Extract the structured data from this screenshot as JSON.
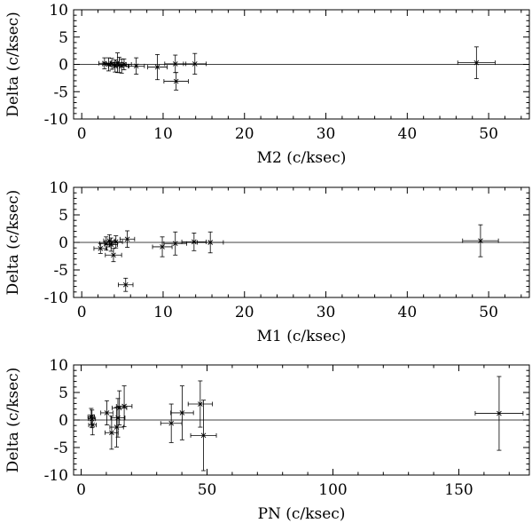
{
  "chart_data": [
    {
      "type": "scatter",
      "xlabel": "M2 (c/ksec)",
      "ylabel": "Delta (c/ksec)",
      "xlim": [
        -1,
        55
      ],
      "ylim": [
        -10,
        10
      ],
      "xticks": [
        0,
        10,
        20,
        30,
        40,
        50
      ],
      "yticks": [
        -10,
        -5,
        0,
        5,
        10
      ],
      "reference_line_y": 0,
      "points": [
        {
          "x": 2.8,
          "y": 0.2,
          "xerr": 0.7,
          "yerr": 1.0
        },
        {
          "x": 3.3,
          "y": 0.0,
          "xerr": 0.7,
          "yerr": 1.2
        },
        {
          "x": 3.7,
          "y": 0.1,
          "xerr": 0.8,
          "yerr": 1.0
        },
        {
          "x": 4.1,
          "y": -0.3,
          "xerr": 0.8,
          "yerr": 1.1
        },
        {
          "x": 4.4,
          "y": 0.3,
          "xerr": 0.8,
          "yerr": 1.8
        },
        {
          "x": 4.6,
          "y": -0.1,
          "xerr": 0.9,
          "yerr": 1.4
        },
        {
          "x": 4.9,
          "y": -0.3,
          "xerr": 0.9,
          "yerr": 1.3
        },
        {
          "x": 5.2,
          "y": 0.0,
          "xerr": 0.9,
          "yerr": 1.0
        },
        {
          "x": 6.7,
          "y": -0.3,
          "xerr": 1.0,
          "yerr": 1.5
        },
        {
          "x": 9.3,
          "y": -0.5,
          "xerr": 1.2,
          "yerr": 2.3
        },
        {
          "x": 11.5,
          "y": 0.1,
          "xerr": 1.3,
          "yerr": 1.6
        },
        {
          "x": 11.6,
          "y": -3.1,
          "xerr": 1.5,
          "yerr": 1.6
        },
        {
          "x": 13.9,
          "y": 0.1,
          "xerr": 1.4,
          "yerr": 1.9
        },
        {
          "x": 48.5,
          "y": 0.3,
          "xerr": 2.3,
          "yerr": 2.9
        }
      ]
    },
    {
      "type": "scatter",
      "xlabel": "M1 (c/ksec)",
      "ylabel": "Delta (c/ksec)",
      "xlim": [
        -1,
        55
      ],
      "ylim": [
        -10,
        10
      ],
      "xticks": [
        0,
        10,
        20,
        30,
        40,
        50
      ],
      "yticks": [
        -10,
        -5,
        0,
        5,
        10
      ],
      "reference_line_y": 0,
      "points": [
        {
          "x": 2.3,
          "y": -1.1,
          "xerr": 0.8,
          "yerr": 0.9
        },
        {
          "x": 3.0,
          "y": -0.2,
          "xerr": 0.8,
          "yerr": 1.2
        },
        {
          "x": 3.4,
          "y": 0.3,
          "xerr": 0.7,
          "yerr": 1.1
        },
        {
          "x": 3.6,
          "y": -0.4,
          "xerr": 0.8,
          "yerr": 1.2
        },
        {
          "x": 3.9,
          "y": -2.3,
          "xerr": 1.0,
          "yerr": 1.2
        },
        {
          "x": 4.2,
          "y": 0.1,
          "xerr": 0.8,
          "yerr": 1.1
        },
        {
          "x": 5.4,
          "y": -7.7,
          "xerr": 0.9,
          "yerr": 1.2
        },
        {
          "x": 5.6,
          "y": 0.6,
          "xerr": 0.9,
          "yerr": 1.5
        },
        {
          "x": 9.9,
          "y": -0.8,
          "xerr": 1.2,
          "yerr": 1.8
        },
        {
          "x": 11.5,
          "y": -0.2,
          "xerr": 1.4,
          "yerr": 2.1
        },
        {
          "x": 13.8,
          "y": 0.1,
          "xerr": 1.5,
          "yerr": 1.6
        },
        {
          "x": 15.8,
          "y": 0.0,
          "xerr": 1.6,
          "yerr": 1.9
        },
        {
          "x": 49.0,
          "y": 0.3,
          "xerr": 2.2,
          "yerr": 2.9
        }
      ]
    },
    {
      "type": "scatter",
      "xlabel": "PN (c/ksec)",
      "ylabel": "Delta (c/ksec)",
      "xlim": [
        -3,
        178
      ],
      "ylim": [
        -10,
        10
      ],
      "xticks": [
        0,
        50,
        100,
        150
      ],
      "yticks": [
        -10,
        -5,
        0,
        5,
        10
      ],
      "reference_line_y": 0,
      "points": [
        {
          "x": 4.0,
          "y": 0.6,
          "xerr": 1.3,
          "yerr": 1.5
        },
        {
          "x": 4.3,
          "y": 0.2,
          "xerr": 1.4,
          "yerr": 1.6
        },
        {
          "x": 4.5,
          "y": -0.9,
          "xerr": 1.5,
          "yerr": 1.8
        },
        {
          "x": 10.2,
          "y": 1.3,
          "xerr": 2.4,
          "yerr": 2.2
        },
        {
          "x": 12.1,
          "y": -2.3,
          "xerr": 2.6,
          "yerr": 3.0
        },
        {
          "x": 14.1,
          "y": -1.3,
          "xerr": 2.7,
          "yerr": 3.6
        },
        {
          "x": 14.6,
          "y": 0.4,
          "xerr": 2.8,
          "yerr": 3.5
        },
        {
          "x": 15.2,
          "y": 2.2,
          "xerr": 2.9,
          "yerr": 3.1
        },
        {
          "x": 17.1,
          "y": 2.5,
          "xerr": 3.1,
          "yerr": 3.7
        },
        {
          "x": 35.8,
          "y": -0.6,
          "xerr": 4.2,
          "yerr": 3.5
        },
        {
          "x": 40.1,
          "y": 1.3,
          "xerr": 4.5,
          "yerr": 4.9
        },
        {
          "x": 47.3,
          "y": 2.9,
          "xerr": 4.8,
          "yerr": 4.2
        },
        {
          "x": 48.6,
          "y": -2.8,
          "xerr": 5.1,
          "yerr": 6.4
        },
        {
          "x": 166.0,
          "y": 1.2,
          "xerr": 9.5,
          "yerr": 6.7
        }
      ]
    }
  ]
}
